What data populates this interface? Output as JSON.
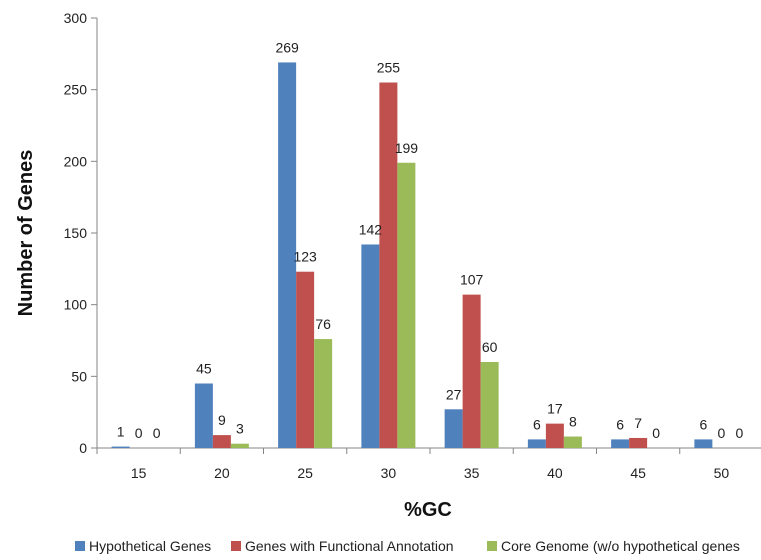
{
  "chart_data": {
    "type": "bar",
    "xlabel": "%GC",
    "ylabel": "Number of Genes",
    "categories": [
      "15",
      "20",
      "25",
      "30",
      "35",
      "40",
      "45",
      "50"
    ],
    "ylim": [
      0,
      300
    ],
    "yticks": [
      0,
      50,
      100,
      150,
      200,
      250,
      300
    ],
    "grid": false,
    "legend_position": "bottom",
    "series": [
      {
        "name": "Hypothetical Genes",
        "color": "#4F81BD",
        "values": [
          1,
          45,
          269,
          142,
          27,
          6,
          6,
          6
        ]
      },
      {
        "name": "Genes with Functional Annotation",
        "color": "#C0504D",
        "values": [
          0,
          9,
          123,
          255,
          107,
          17,
          7,
          0
        ]
      },
      {
        "name": "Core Genome (w/o hypothetical genes",
        "color": "#9BBB59",
        "values": [
          0,
          3,
          76,
          199,
          60,
          8,
          0,
          0
        ]
      }
    ]
  }
}
